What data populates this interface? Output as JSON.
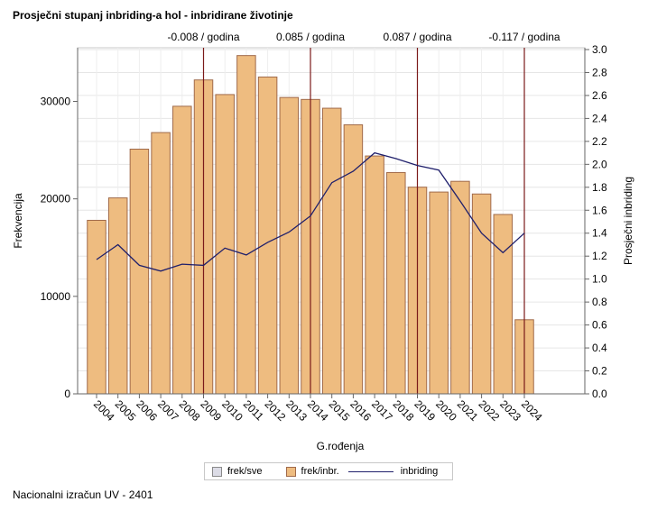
{
  "title": "Prosječni stupanj inbriding-a hol - inbridirane životinje",
  "footnote": "Nacionalni izračun UV - 2401",
  "legend": {
    "frek_sve": "frek/sve",
    "frek_inbr": "frek/inbr.",
    "inbriding": "inbriding"
  },
  "colors": {
    "bar_fill": "#eebc80",
    "bar_stroke": "#a06a4a",
    "line": "#1f1f6b",
    "vline": "#7b1a1a",
    "frek_sve_fill": "#dcdce6"
  },
  "chart_data": {
    "type": "bar",
    "xlabel": "G.rođenja",
    "ylabel": "Frekvencija",
    "y2label": "Prosječni inbriding",
    "categories": [
      "2004",
      "2005",
      "2006",
      "2007",
      "2008",
      "2009",
      "2010",
      "2011",
      "2012",
      "2013",
      "2014",
      "2015",
      "2016",
      "2017",
      "2018",
      "2019",
      "2020",
      "2021",
      "2022",
      "2023",
      "2024"
    ],
    "y_ticks": [
      "0",
      "10000",
      "20000",
      "30000"
    ],
    "y2_ticks": [
      "0.0",
      "0.2",
      "0.4",
      "0.6",
      "0.8",
      "1.0",
      "1.2",
      "1.4",
      "1.6",
      "1.8",
      "2.0",
      "2.2",
      "2.4",
      "2.6",
      "2.8",
      "3.0"
    ],
    "ylim": [
      0,
      35500
    ],
    "y2lim": [
      0.0,
      3.0
    ],
    "series": [
      {
        "name": "frek/inbr.",
        "type": "bar",
        "axis": "left",
        "values": [
          17800,
          20100,
          25100,
          26800,
          29500,
          32200,
          30700,
          34700,
          32500,
          30400,
          30200,
          29300,
          27600,
          24400,
          22700,
          21200,
          20700,
          21800,
          20500,
          18400,
          7600
        ]
      },
      {
        "name": "inbriding",
        "type": "line",
        "axis": "right",
        "values": [
          1.17,
          1.3,
          1.12,
          1.07,
          1.13,
          1.12,
          1.27,
          1.21,
          1.32,
          1.41,
          1.55,
          1.84,
          1.94,
          2.1,
          2.05,
          1.99,
          1.95,
          1.68,
          1.4,
          1.23,
          1.4
        ]
      }
    ],
    "annotations": [
      {
        "x": "2009",
        "label": "-0.008 / godina"
      },
      {
        "x": "2014",
        "label": "0.085 / godina"
      },
      {
        "x": "2019",
        "label": "0.087 / godina"
      },
      {
        "x": "2024",
        "label": "-0.117 / godina"
      }
    ],
    "grid": true,
    "legend_position": "bottom"
  }
}
